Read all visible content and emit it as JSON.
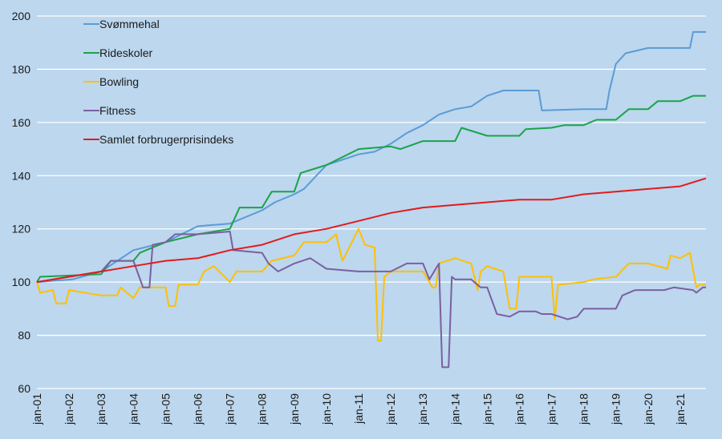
{
  "chart_data": {
    "type": "line",
    "title": "",
    "xlabel": "",
    "ylabel": "",
    "ylim": [
      60,
      200
    ],
    "yticks": [
      60,
      80,
      100,
      120,
      140,
      160,
      180,
      200
    ],
    "xticks": [
      "jan-01",
      "jan-02",
      "jan-03",
      "jan-04",
      "jan-05",
      "jan-06",
      "jan-07",
      "jan-08",
      "jan-09",
      "jan-10",
      "jan-11",
      "jan-12",
      "jan-13",
      "jan-14",
      "jan-15",
      "jan-16",
      "jan-17",
      "jan-18",
      "jan-19",
      "jan-20",
      "jan-21"
    ],
    "x_range_years": [
      2001,
      2021.8
    ],
    "grid": true,
    "legend_position": "top-left",
    "colors": {
      "background": "#bcd7ee",
      "grid": "#ffffff"
    },
    "series": [
      {
        "name": "Svømmehal",
        "color": "#5b9bd5",
        "points": [
          [
            2001,
            100
          ],
          [
            2002.1,
            101
          ],
          [
            2003,
            104
          ],
          [
            2004,
            112
          ],
          [
            2005,
            115
          ],
          [
            2006,
            121
          ],
          [
            2007,
            122
          ],
          [
            2008,
            127
          ],
          [
            2008.4,
            130
          ],
          [
            2009,
            133
          ],
          [
            2009.3,
            135
          ],
          [
            2010,
            144
          ],
          [
            2011,
            148
          ],
          [
            2011.5,
            149
          ],
          [
            2012,
            152
          ],
          [
            2012.5,
            156
          ],
          [
            2013,
            159
          ],
          [
            2013.5,
            163
          ],
          [
            2014,
            165
          ],
          [
            2014.5,
            166
          ],
          [
            2015,
            170
          ],
          [
            2015.5,
            172
          ],
          [
            2016.6,
            172
          ],
          [
            2016.7,
            164.5
          ],
          [
            2018,
            165
          ],
          [
            2018.7,
            165
          ],
          [
            2018.8,
            172
          ],
          [
            2019,
            182
          ],
          [
            2019.3,
            186
          ],
          [
            2020,
            188
          ],
          [
            2021.3,
            188
          ],
          [
            2021.4,
            194
          ],
          [
            2021.8,
            194
          ]
        ]
      },
      {
        "name": "Rideskoler",
        "color": "#1aa34a",
        "points": [
          [
            2001,
            100
          ],
          [
            2001.1,
            102
          ],
          [
            2003,
            103
          ],
          [
            2003.3,
            108
          ],
          [
            2004,
            108
          ],
          [
            2004.2,
            111
          ],
          [
            2005,
            115
          ],
          [
            2006,
            118
          ],
          [
            2007,
            120
          ],
          [
            2007.3,
            128
          ],
          [
            2008,
            128
          ],
          [
            2008.3,
            134
          ],
          [
            2009,
            134
          ],
          [
            2009.2,
            141
          ],
          [
            2010,
            144
          ],
          [
            2011,
            150
          ],
          [
            2012,
            151
          ],
          [
            2012.3,
            150
          ],
          [
            2013,
            153
          ],
          [
            2014,
            153
          ],
          [
            2014.2,
            158
          ],
          [
            2015,
            155
          ],
          [
            2016,
            155
          ],
          [
            2016.2,
            157.5
          ],
          [
            2017,
            158
          ],
          [
            2017.4,
            159
          ],
          [
            2018,
            159
          ],
          [
            2018.4,
            161
          ],
          [
            2019,
            161
          ],
          [
            2019.4,
            165
          ],
          [
            2020,
            165
          ],
          [
            2020.3,
            168
          ],
          [
            2021,
            168
          ],
          [
            2021.4,
            170
          ],
          [
            2021.8,
            170
          ]
        ]
      },
      {
        "name": "Bowling",
        "color": "#ffc000",
        "points": [
          [
            2001,
            100
          ],
          [
            2001.1,
            96
          ],
          [
            2001.5,
            97
          ],
          [
            2001.6,
            92
          ],
          [
            2001.9,
            92
          ],
          [
            2002,
            97
          ],
          [
            2003,
            95
          ],
          [
            2003.5,
            95
          ],
          [
            2003.6,
            98
          ],
          [
            2004,
            94
          ],
          [
            2004.2,
            98
          ],
          [
            2005,
            98
          ],
          [
            2005.1,
            91
          ],
          [
            2005.3,
            91
          ],
          [
            2005.4,
            99
          ],
          [
            2006,
            99
          ],
          [
            2006.2,
            104
          ],
          [
            2006.5,
            106
          ],
          [
            2007,
            100
          ],
          [
            2007.2,
            104
          ],
          [
            2008,
            104
          ],
          [
            2008.3,
            108
          ],
          [
            2009,
            110
          ],
          [
            2009.3,
            115
          ],
          [
            2010,
            115
          ],
          [
            2010.3,
            118
          ],
          [
            2010.5,
            108
          ],
          [
            2011,
            120
          ],
          [
            2011.2,
            114
          ],
          [
            2011.5,
            113
          ],
          [
            2011.6,
            78
          ],
          [
            2011.7,
            78
          ],
          [
            2011.8,
            102
          ],
          [
            2012,
            104
          ],
          [
            2013,
            104
          ],
          [
            2013.3,
            98
          ],
          [
            2013.4,
            98
          ],
          [
            2013.5,
            107
          ],
          [
            2014,
            109
          ],
          [
            2014.5,
            107
          ],
          [
            2014.7,
            97
          ],
          [
            2014.8,
            104
          ],
          [
            2015,
            106
          ],
          [
            2015.5,
            104
          ],
          [
            2015.7,
            90
          ],
          [
            2015.9,
            90
          ],
          [
            2016,
            102
          ],
          [
            2017,
            102
          ],
          [
            2017.1,
            86
          ],
          [
            2017.2,
            99
          ],
          [
            2018,
            100
          ],
          [
            2018.3,
            101
          ],
          [
            2019,
            102
          ],
          [
            2019.4,
            107
          ],
          [
            2020,
            107
          ],
          [
            2020.6,
            105
          ],
          [
            2020.7,
            110
          ],
          [
            2021,
            109
          ],
          [
            2021.3,
            111
          ],
          [
            2021.5,
            98
          ],
          [
            2021.6,
            99
          ],
          [
            2021.8,
            99
          ]
        ]
      },
      {
        "name": "Fitness",
        "color": "#7b5fa0",
        "points": [
          [
            2001,
            100
          ],
          [
            2002,
            102
          ],
          [
            2003,
            104
          ],
          [
            2003.3,
            108
          ],
          [
            2004,
            108
          ],
          [
            2004.3,
            98
          ],
          [
            2004.5,
            98
          ],
          [
            2004.6,
            114
          ],
          [
            2005,
            115
          ],
          [
            2005.3,
            118
          ],
          [
            2006,
            118
          ],
          [
            2007,
            119
          ],
          [
            2007.1,
            112
          ],
          [
            2008,
            111
          ],
          [
            2008.2,
            107
          ],
          [
            2008.5,
            104
          ],
          [
            2009,
            107
          ],
          [
            2009.5,
            109
          ],
          [
            2010,
            105
          ],
          [
            2011,
            104
          ],
          [
            2012,
            104
          ],
          [
            2012.5,
            107
          ],
          [
            2013,
            107
          ],
          [
            2013.2,
            101
          ],
          [
            2013.5,
            107
          ],
          [
            2013.6,
            68
          ],
          [
            2013.8,
            68
          ],
          [
            2013.9,
            102
          ],
          [
            2014,
            101
          ],
          [
            2014.5,
            101
          ],
          [
            2014.8,
            98
          ],
          [
            2015,
            98
          ],
          [
            2015.3,
            88
          ],
          [
            2015.7,
            87
          ],
          [
            2016,
            89
          ],
          [
            2016.5,
            89
          ],
          [
            2016.7,
            88
          ],
          [
            2017,
            88
          ],
          [
            2017.5,
            86
          ],
          [
            2017.8,
            87
          ],
          [
            2018,
            90
          ],
          [
            2018.5,
            90
          ],
          [
            2019,
            90
          ],
          [
            2019.2,
            95
          ],
          [
            2019.6,
            97
          ],
          [
            2020,
            97
          ],
          [
            2020.5,
            97
          ],
          [
            2020.8,
            98
          ],
          [
            2021.4,
            97
          ],
          [
            2021.5,
            96
          ],
          [
            2021.7,
            98
          ],
          [
            2021.8,
            98
          ]
        ]
      },
      {
        "name": "Samlet forbrugerprisindeks",
        "color": "#e31a1c",
        "points": [
          [
            2001,
            100
          ],
          [
            2002,
            102
          ],
          [
            2003,
            104
          ],
          [
            2004,
            106
          ],
          [
            2005,
            108
          ],
          [
            2006,
            109
          ],
          [
            2007,
            112
          ],
          [
            2008,
            114
          ],
          [
            2009,
            118
          ],
          [
            2010,
            120
          ],
          [
            2011,
            123
          ],
          [
            2012,
            126
          ],
          [
            2013,
            128
          ],
          [
            2014,
            129
          ],
          [
            2015,
            130
          ],
          [
            2016,
            131
          ],
          [
            2017,
            131
          ],
          [
            2018,
            133
          ],
          [
            2019,
            134
          ],
          [
            2020,
            135
          ],
          [
            2021,
            136
          ],
          [
            2021.8,
            139
          ]
        ]
      }
    ]
  }
}
